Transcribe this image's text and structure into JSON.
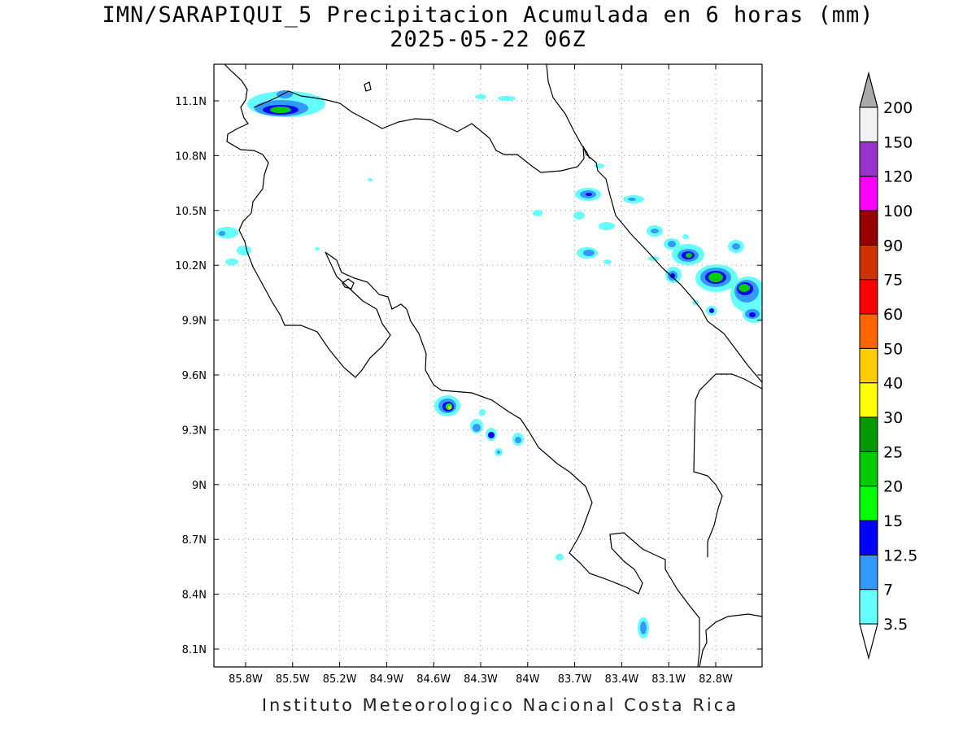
{
  "title": "IMN/SARAPIQUI_5 Precipitacion Acumulada en 6 horas (mm)",
  "subtitle": "2025-05-22 06Z",
  "footer": "Instituto Meteorologico Nacional Costa Rica",
  "map": {
    "lon_range": [
      -85.97,
      -82.97
    ],
    "lat_range": [
      8.01,
      11.2
    ],
    "lon_ticks": [
      "85.8W",
      "85.5W",
      "85.2W",
      "84.9W",
      "84.6W",
      "84.3W",
      "84W",
      "83.7W",
      "83.4W",
      "83.1W",
      "82.8W"
    ],
    "lat_ticks": [
      "11.1N",
      "10.8N",
      "10.5N",
      "10.2N",
      "9.9N",
      "9.6N",
      "9.3N",
      "9N",
      "8.7N",
      "8.4N",
      "8.1N"
    ]
  },
  "legend": {
    "levels": [
      "3.5",
      "7",
      "12.5",
      "15",
      "20",
      "25",
      "30",
      "40",
      "50",
      "60",
      "75",
      "90",
      "100",
      "120",
      "150",
      "200"
    ],
    "colors": [
      "#66ffff",
      "#3399ff",
      "#0000ff",
      "#00ff00",
      "#00cc00",
      "#009900",
      "#ffff00",
      "#ffcc00",
      "#ff6600",
      "#ff0000",
      "#cc3300",
      "#990000",
      "#ff00ff",
      "#9933cc",
      "#f2f2f2"
    ]
  }
}
